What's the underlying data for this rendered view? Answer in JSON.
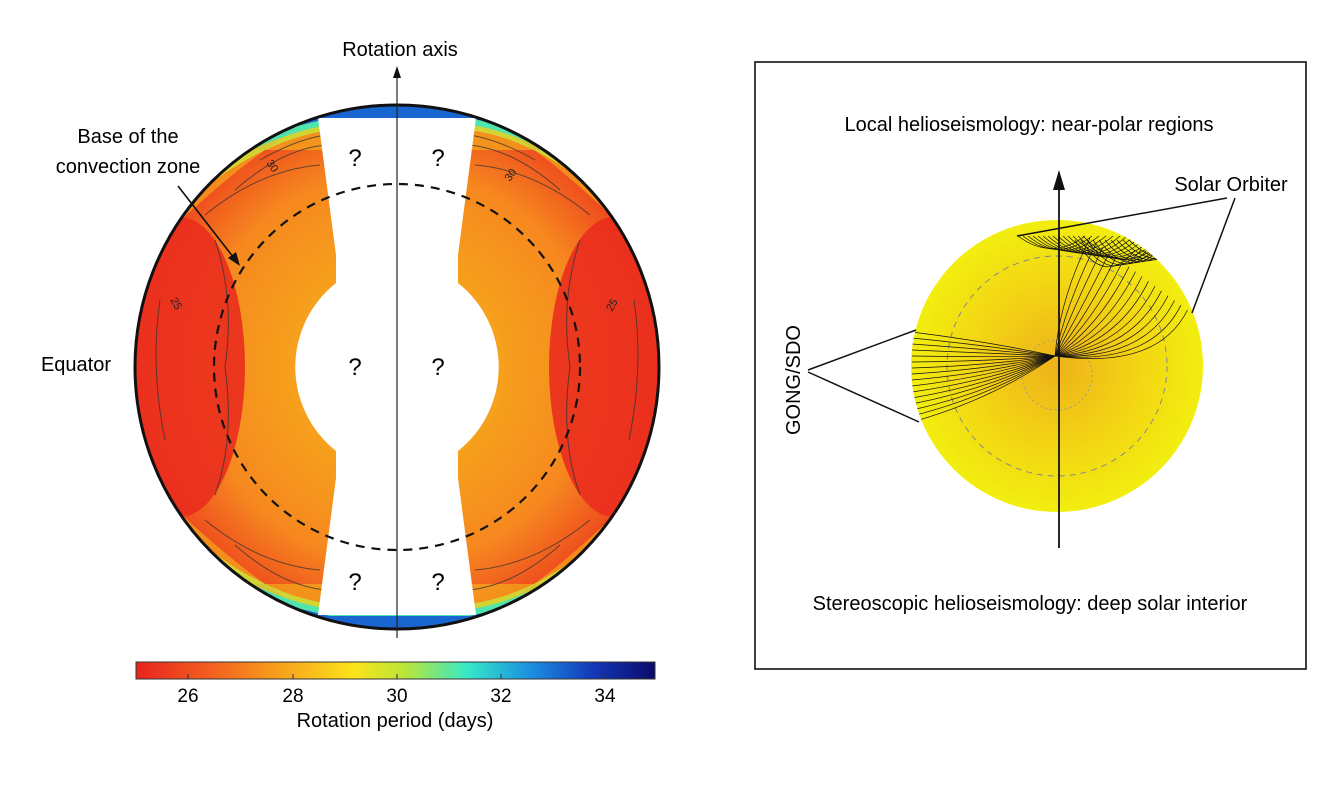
{
  "left_panel": {
    "axis_label": "Rotation axis",
    "base_label_line1": "Base of the",
    "base_label_line2": "convection zone",
    "equator_label": "Equator",
    "unknown_mark": "?",
    "contour_labels": [
      "30",
      "30",
      "25",
      "25"
    ],
    "colorbar": {
      "title": "Rotation period (days)",
      "ticks": [
        "26",
        "28",
        "30",
        "32",
        "34"
      ],
      "colors": [
        "#e8231d",
        "#f36a1f",
        "#f8a21c",
        "#fae41b",
        "#b8e53a",
        "#35e8c8",
        "#1b8fe0",
        "#1438b8",
        "#0a0a6a"
      ]
    }
  },
  "right_panel": {
    "top_text": "Local helioseismology: near-polar regions",
    "solar_orbiter_label": "Solar Orbiter",
    "gong_label": "GONG/SDO",
    "bottom_text": "Stereoscopic helioseismology: deep solar interior",
    "sun_color": "#f1ee10"
  }
}
